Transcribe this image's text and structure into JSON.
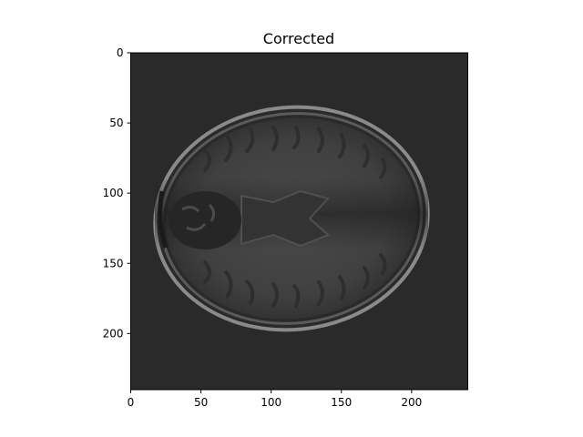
{
  "figure": {
    "title": "Corrected",
    "image_description": "axial brain MRI slice, grayscale",
    "colormap": "gray",
    "background_color": "#2a2a2a",
    "x_axis": {
      "range": [
        0,
        240
      ],
      "ticks": [
        0,
        50,
        100,
        150,
        200
      ],
      "tick_labels": [
        "0",
        "50",
        "100",
        "150",
        "200"
      ]
    },
    "y_axis": {
      "range": [
        0,
        240
      ],
      "inverted": true,
      "ticks": [
        0,
        50,
        100,
        150,
        200
      ],
      "tick_labels": [
        "0",
        "50",
        "100",
        "150",
        "200"
      ]
    }
  }
}
